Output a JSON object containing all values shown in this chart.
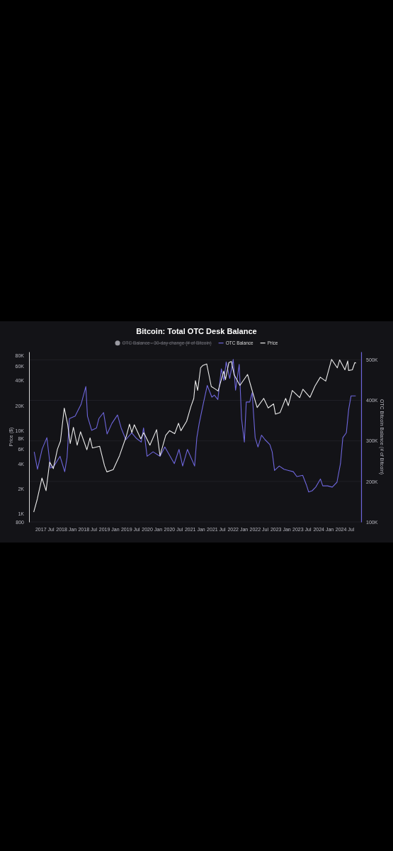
{
  "chart_data": {
    "type": "line",
    "title": "Bitcoin: Total OTC Desk Balance",
    "ylabel": "Price ($)",
    "y2label": "OTC Bitcoin Balance (# of Bitcoin)",
    "legend": "top",
    "grid": "y",
    "log": "y",
    "xlim": [
      "2017-02-20",
      "2024-11-20"
    ],
    "xticks": [
      {
        "value": "2017-07",
        "label": "2017 Jul"
      },
      {
        "value": "2018-01",
        "label": "2018 Jan"
      },
      {
        "value": "2018-07",
        "label": "2018 Jul"
      },
      {
        "value": "2019-01",
        "label": "2019 Jan"
      },
      {
        "value": "2019-07",
        "label": "2019 Jul"
      },
      {
        "value": "2020-01",
        "label": "2020 Jan"
      },
      {
        "value": "2020-07",
        "label": "2020 Jul"
      },
      {
        "value": "2021-01",
        "label": "2021 Jan"
      },
      {
        "value": "2021-07",
        "label": "2021 Jul"
      },
      {
        "value": "2022-01",
        "label": "2022 Jan"
      },
      {
        "value": "2022-07",
        "label": "2022 Jul"
      },
      {
        "value": "2023-01",
        "label": "2023 Jan"
      },
      {
        "value": "2023-07",
        "label": "2023 Jul"
      },
      {
        "value": "2024-01",
        "label": "2024 Jan"
      },
      {
        "value": "2024-07",
        "label": "2024 Jul"
      }
    ],
    "ylim": [
      800,
      89000
    ],
    "yticks": [
      800,
      {
        "value": 1000,
        "label": "1K"
      },
      {
        "value": 2000,
        "label": "2K"
      },
      {
        "value": 4000,
        "label": "4K"
      },
      {
        "value": 6000,
        "label": "6K"
      },
      {
        "value": 8000,
        "label": "8K"
      },
      {
        "value": 10000,
        "label": "10K"
      },
      {
        "value": 20000,
        "label": "20K"
      },
      {
        "value": 40000,
        "label": "40K"
      },
      {
        "value": 60000,
        "label": "60K"
      },
      {
        "value": 80000,
        "label": "80K"
      }
    ],
    "y2lim": [
      100000,
      520000
    ],
    "y2ticks": [
      {
        "value": 100000,
        "label": "100K"
      },
      {
        "value": 200000,
        "label": "200K"
      },
      {
        "value": 300000,
        "label": "300K"
      },
      {
        "value": 400000,
        "label": "400K"
      },
      {
        "value": 500000,
        "label": "500K"
      }
    ],
    "series": [
      {
        "name": "OTC Balance - 30-day change (# of Bitcoin)",
        "color": "#9a9aa2",
        "axis": "y2"
      },
      {
        "name": "OTC Balance",
        "color": "#6e66dc",
        "axis": "y2",
        "x": [
          "2017-04-05",
          "2017-05-03",
          "2017-06-12",
          "2017-07-22",
          "2017-08-22",
          "2017-09-21",
          "2017-11-11",
          "2017-12-21",
          "2018-01-10",
          "2018-01-30",
          "2018-03-20",
          "2018-05-09",
          "2018-06-19",
          "2018-07-03",
          "2018-08-08",
          "2018-09-18",
          "2018-10-08",
          "2018-11-17",
          "2018-12-17",
          "2019-01-27",
          "2019-03-16",
          "2019-04-16",
          "2019-05-26",
          "2019-07-15",
          "2019-08-25",
          "2019-10-04",
          "2019-10-24",
          "2019-11-23",
          "2020-01-13",
          "2020-03-13",
          "2020-04-22",
          "2020-07-12",
          "2020-08-21",
          "2020-09-21",
          "2020-11-01",
          "2021-01-01",
          "2021-01-20",
          "2021-02-09",
          "2021-03-19",
          "2021-04-19",
          "2021-05-28",
          "2021-06-18",
          "2021-07-18",
          "2021-08-17",
          "2021-09-07",
          "2021-09-27",
          "2021-10-27",
          "2021-11-26",
          "2021-12-16",
          "2022-01-16",
          "2022-02-05",
          "2022-03-01",
          "2022-03-17",
          "2022-04-16",
          "2022-05-06",
          "2022-06-01",
          "2022-06-25",
          "2022-07-25",
          "2022-08-24",
          "2022-10-04",
          "2022-10-24",
          "2022-11-13",
          "2022-12-23",
          "2023-02-02",
          "2023-03-13",
          "2023-04-22",
          "2023-05-22",
          "2023-07-11",
          "2023-08-11",
          "2023-08-31",
          "2023-09-30",
          "2023-10-30",
          "2023-12-09",
          "2023-12-29",
          "2024-02-08",
          "2024-03-19",
          "2024-04-28",
          "2024-05-28",
          "2024-06-17",
          "2024-07-17",
          "2024-08-06",
          "2024-08-26",
          "2024-10-05"
        ],
        "values": [
          273000,
          230000,
          280000,
          308000,
          233000,
          238000,
          262000,
          224000,
          259000,
          355000,
          361000,
          390000,
          434000,
          361000,
          326000,
          332000,
          355000,
          370000,
          317000,
          343000,
          364000,
          332000,
          303000,
          320000,
          306000,
          297000,
          332000,
          262000,
          273000,
          262000,
          285000,
          244000,
          279000,
          238000,
          279000,
          238000,
          308000,
          343000,
          396000,
          437000,
          408000,
          413000,
          402000,
          478000,
          449000,
          495000,
          454000,
          501000,
          425000,
          489000,
          355000,
          297000,
          396000,
          396000,
          419000,
          308000,
          285000,
          314000,
          303000,
          291000,
          273000,
          227000,
          238000,
          230000,
          227000,
          224000,
          212000,
          215000,
          192000,
          174000,
          177000,
          186000,
          206000,
          189000,
          189000,
          186000,
          198000,
          244000,
          308000,
          320000,
          378000,
          411000,
          411000
        ]
      },
      {
        "name": "Price",
        "color": "#ececec",
        "x": [
          "2017-04-01",
          "2017-05-01",
          "2017-06-10",
          "2017-07-15",
          "2017-08-15",
          "2017-09-15",
          "2017-10-20",
          "2017-11-15",
          "2017-12-17",
          "2018-01-15",
          "2018-02-06",
          "2018-03-05",
          "2018-04-06",
          "2018-05-05",
          "2018-06-28",
          "2018-07-25",
          "2018-08-14",
          "2018-10-15",
          "2018-11-25",
          "2018-12-15",
          "2019-02-07",
          "2019-04-02",
          "2019-05-30",
          "2019-06-26",
          "2019-07-16",
          "2019-08-06",
          "2019-09-30",
          "2019-10-26",
          "2019-12-17",
          "2020-02-12",
          "2020-03-12",
          "2020-04-30",
          "2020-06-01",
          "2020-07-15",
          "2020-08-17",
          "2020-09-06",
          "2020-10-25",
          "2020-11-30",
          "2020-12-25",
          "2021-01-08",
          "2021-01-27",
          "2021-02-21",
          "2021-03-13",
          "2021-04-14",
          "2021-05-23",
          "2021-06-22",
          "2021-07-20",
          "2021-09-06",
          "2021-09-21",
          "2021-10-20",
          "2021-11-10",
          "2021-12-04",
          "2022-01-22",
          "2022-03-28",
          "2022-05-12",
          "2022-06-18",
          "2022-08-13",
          "2022-09-20",
          "2022-11-05",
          "2022-11-21",
          "2022-12-30",
          "2023-02-16",
          "2023-03-10",
          "2023-04-13",
          "2023-06-15",
          "2023-07-13",
          "2023-09-11",
          "2023-10-24",
          "2023-12-08",
          "2024-01-23",
          "2024-03-13",
          "2024-05-01",
          "2024-05-21",
          "2024-07-05",
          "2024-07-29",
          "2024-08-05",
          "2024-09-06",
          "2024-09-27",
          "2024-10-08"
        ],
        "values": [
          1050,
          1500,
          2700,
          1900,
          4200,
          3500,
          6000,
          7500,
          18700,
          12000,
          7000,
          11000,
          6700,
          9700,
          5900,
          8200,
          6200,
          6500,
          3800,
          3200,
          3400,
          5000,
          8600,
          12000,
          9500,
          11800,
          8000,
          9500,
          6700,
          10300,
          5000,
          8800,
          10000,
          9200,
          12300,
          10000,
          13000,
          19500,
          24500,
          40000,
          30500,
          57000,
          61000,
          63500,
          34000,
          32000,
          30000,
          52000,
          41000,
          66000,
          68000,
          47000,
          35000,
          47500,
          28500,
          19000,
          24500,
          18800,
          21000,
          15800,
          16500,
          24500,
          20000,
          30500,
          25000,
          31500,
          25200,
          34500,
          44000,
          39500,
          72000,
          57000,
          71000,
          54000,
          69000,
          53000,
          54000,
          66000,
          65000
        ]
      }
    ]
  }
}
